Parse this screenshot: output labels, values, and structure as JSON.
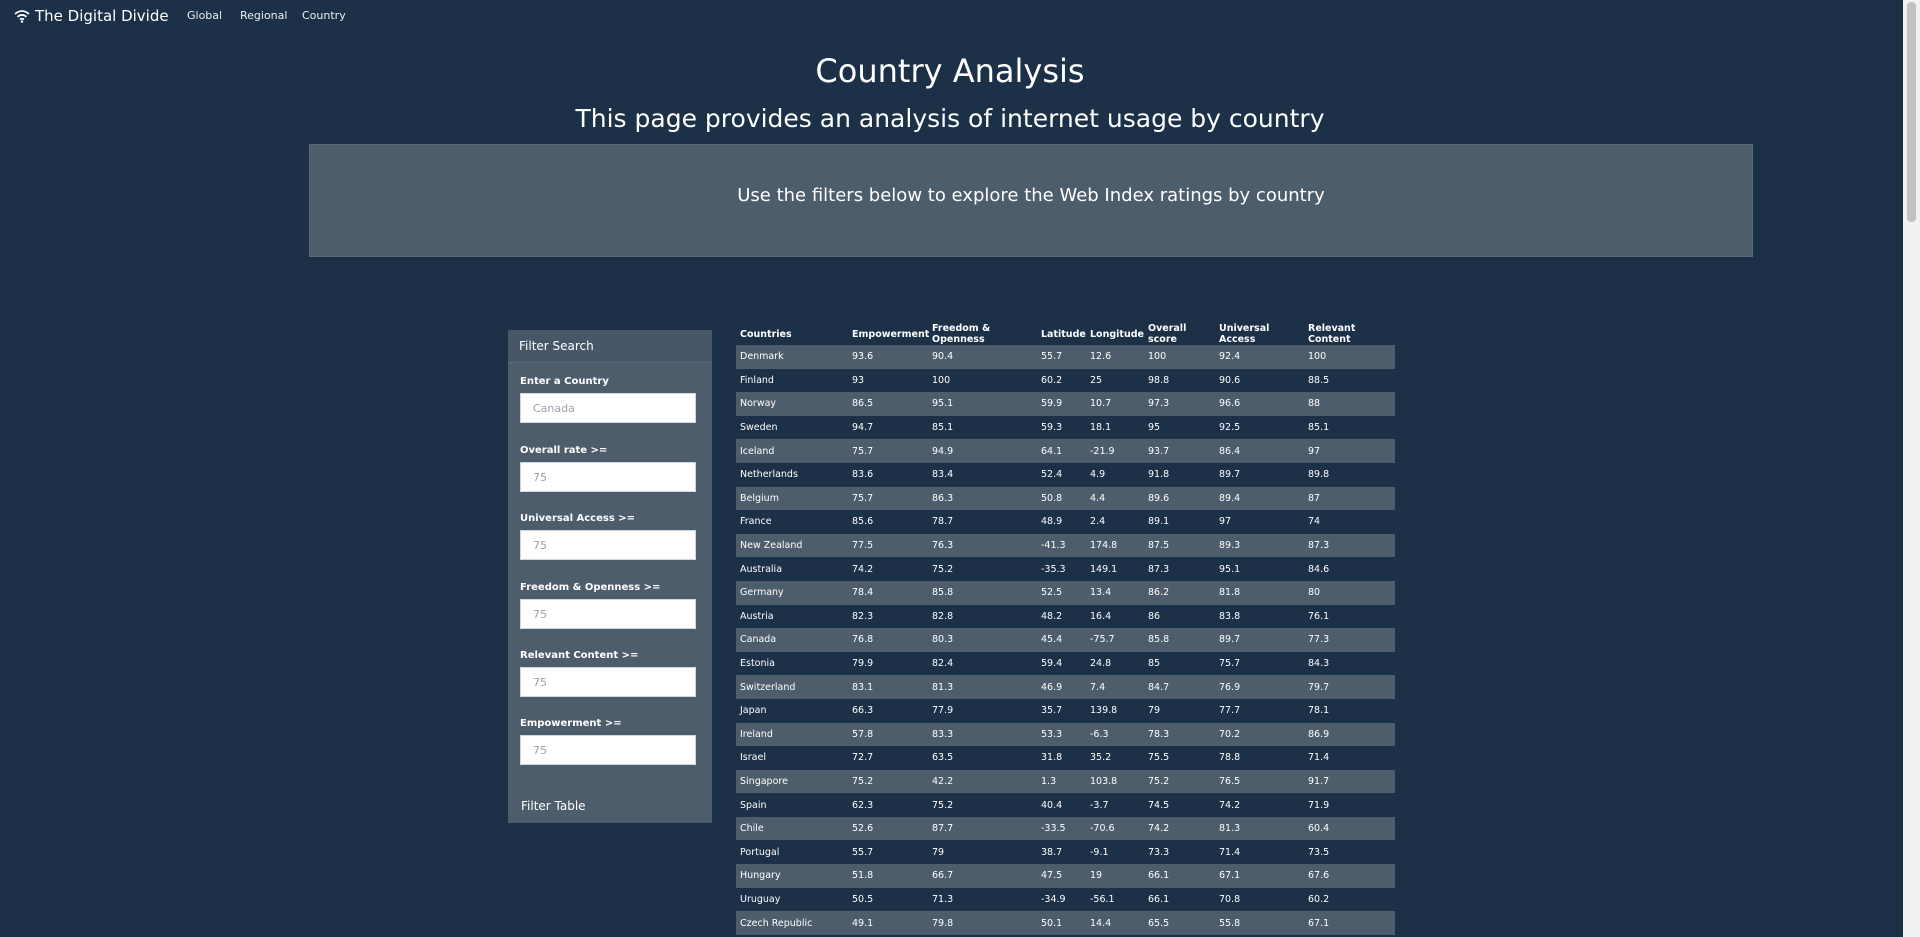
{
  "navbar": {
    "brand": "The Digital Divide",
    "links": [
      "Global",
      "Regional",
      "Country"
    ]
  },
  "header": {
    "title": "Country Analysis",
    "subtitle": "This page provides an analysis of internet usage by country",
    "banner": "Use the filters below to explore the Web Index ratings by country"
  },
  "filters": {
    "title": "Filter Search",
    "fields": [
      {
        "label": "Enter a Country",
        "placeholder": "Canada"
      },
      {
        "label": "Overall rate >=",
        "placeholder": "75"
      },
      {
        "label": "Universal Access >=",
        "placeholder": "75"
      },
      {
        "label": "Freedom & Openness >=",
        "placeholder": "75"
      },
      {
        "label": "Relevant Content >=",
        "placeholder": "75"
      },
      {
        "label": "Empowerment >=",
        "placeholder": "75"
      }
    ],
    "button": "Filter Table"
  },
  "table": {
    "columns": [
      "Countries",
      "Empowerment",
      "Freedom & Openness",
      "Latitude",
      "Longitude",
      "Overall score",
      "Universal Access",
      "Relevant Content"
    ],
    "rows": [
      [
        "Denmark",
        "93.6",
        "90.4",
        "55.7",
        "12.6",
        "100",
        "92.4",
        "100"
      ],
      [
        "Finland",
        "93",
        "100",
        "60.2",
        "25",
        "98.8",
        "90.6",
        "88.5"
      ],
      [
        "Norway",
        "86.5",
        "95.1",
        "59.9",
        "10.7",
        "97.3",
        "96.6",
        "88"
      ],
      [
        "Sweden",
        "94.7",
        "85.1",
        "59.3",
        "18.1",
        "95",
        "92.5",
        "85.1"
      ],
      [
        "Iceland",
        "75.7",
        "94.9",
        "64.1",
        "-21.9",
        "93.7",
        "86.4",
        "97"
      ],
      [
        "Netherlands",
        "83.6",
        "83.4",
        "52.4",
        "4.9",
        "91.8",
        "89.7",
        "89.8"
      ],
      [
        "Belgium",
        "75.7",
        "86.3",
        "50.8",
        "4.4",
        "89.6",
        "89.4",
        "87"
      ],
      [
        "France",
        "85.6",
        "78.7",
        "48.9",
        "2.4",
        "89.1",
        "97",
        "74"
      ],
      [
        "New Zealand",
        "77.5",
        "76.3",
        "-41.3",
        "174.8",
        "87.5",
        "89.3",
        "87.3"
      ],
      [
        "Australia",
        "74.2",
        "75.2",
        "-35.3",
        "149.1",
        "87.3",
        "95.1",
        "84.6"
      ],
      [
        "Germany",
        "78.4",
        "85.8",
        "52.5",
        "13.4",
        "86.2",
        "81.8",
        "80"
      ],
      [
        "Austria",
        "82.3",
        "82.8",
        "48.2",
        "16.4",
        "86",
        "83.8",
        "76.1"
      ],
      [
        "Canada",
        "76.8",
        "80.3",
        "45.4",
        "-75.7",
        "85.8",
        "89.7",
        "77.3"
      ],
      [
        "Estonia",
        "79.9",
        "82.4",
        "59.4",
        "24.8",
        "85",
        "75.7",
        "84.3"
      ],
      [
        "Switzerland",
        "83.1",
        "81.3",
        "46.9",
        "7.4",
        "84.7",
        "76.9",
        "79.7"
      ],
      [
        "Japan",
        "66.3",
        "77.9",
        "35.7",
        "139.8",
        "79",
        "77.7",
        "78.1"
      ],
      [
        "Ireland",
        "57.8",
        "83.3",
        "53.3",
        "-6.3",
        "78.3",
        "70.2",
        "86.9"
      ],
      [
        "Israel",
        "72.7",
        "63.5",
        "31.8",
        "35.2",
        "75.5",
        "78.8",
        "71.4"
      ],
      [
        "Singapore",
        "75.2",
        "42.2",
        "1.3",
        "103.8",
        "75.2",
        "76.5",
        "91.7"
      ],
      [
        "Spain",
        "62.3",
        "75.2",
        "40.4",
        "-3.7",
        "74.5",
        "74.2",
        "71.9"
      ],
      [
        "Chile",
        "52.6",
        "87.7",
        "-33.5",
        "-70.6",
        "74.2",
        "81.3",
        "60.4"
      ],
      [
        "Portugal",
        "55.7",
        "79",
        "38.7",
        "-9.1",
        "73.3",
        "71.4",
        "73.5"
      ],
      [
        "Hungary",
        "51.8",
        "66.7",
        "47.5",
        "19",
        "66.1",
        "67.1",
        "67.6"
      ],
      [
        "Uruguay",
        "50.5",
        "71.3",
        "-34.9",
        "-56.1",
        "66.1",
        "70.8",
        "60.2"
      ],
      [
        "Czech Republic",
        "49.1",
        "79.8",
        "50.1",
        "14.4",
        "65.5",
        "55.8",
        "67.1"
      ]
    ]
  }
}
